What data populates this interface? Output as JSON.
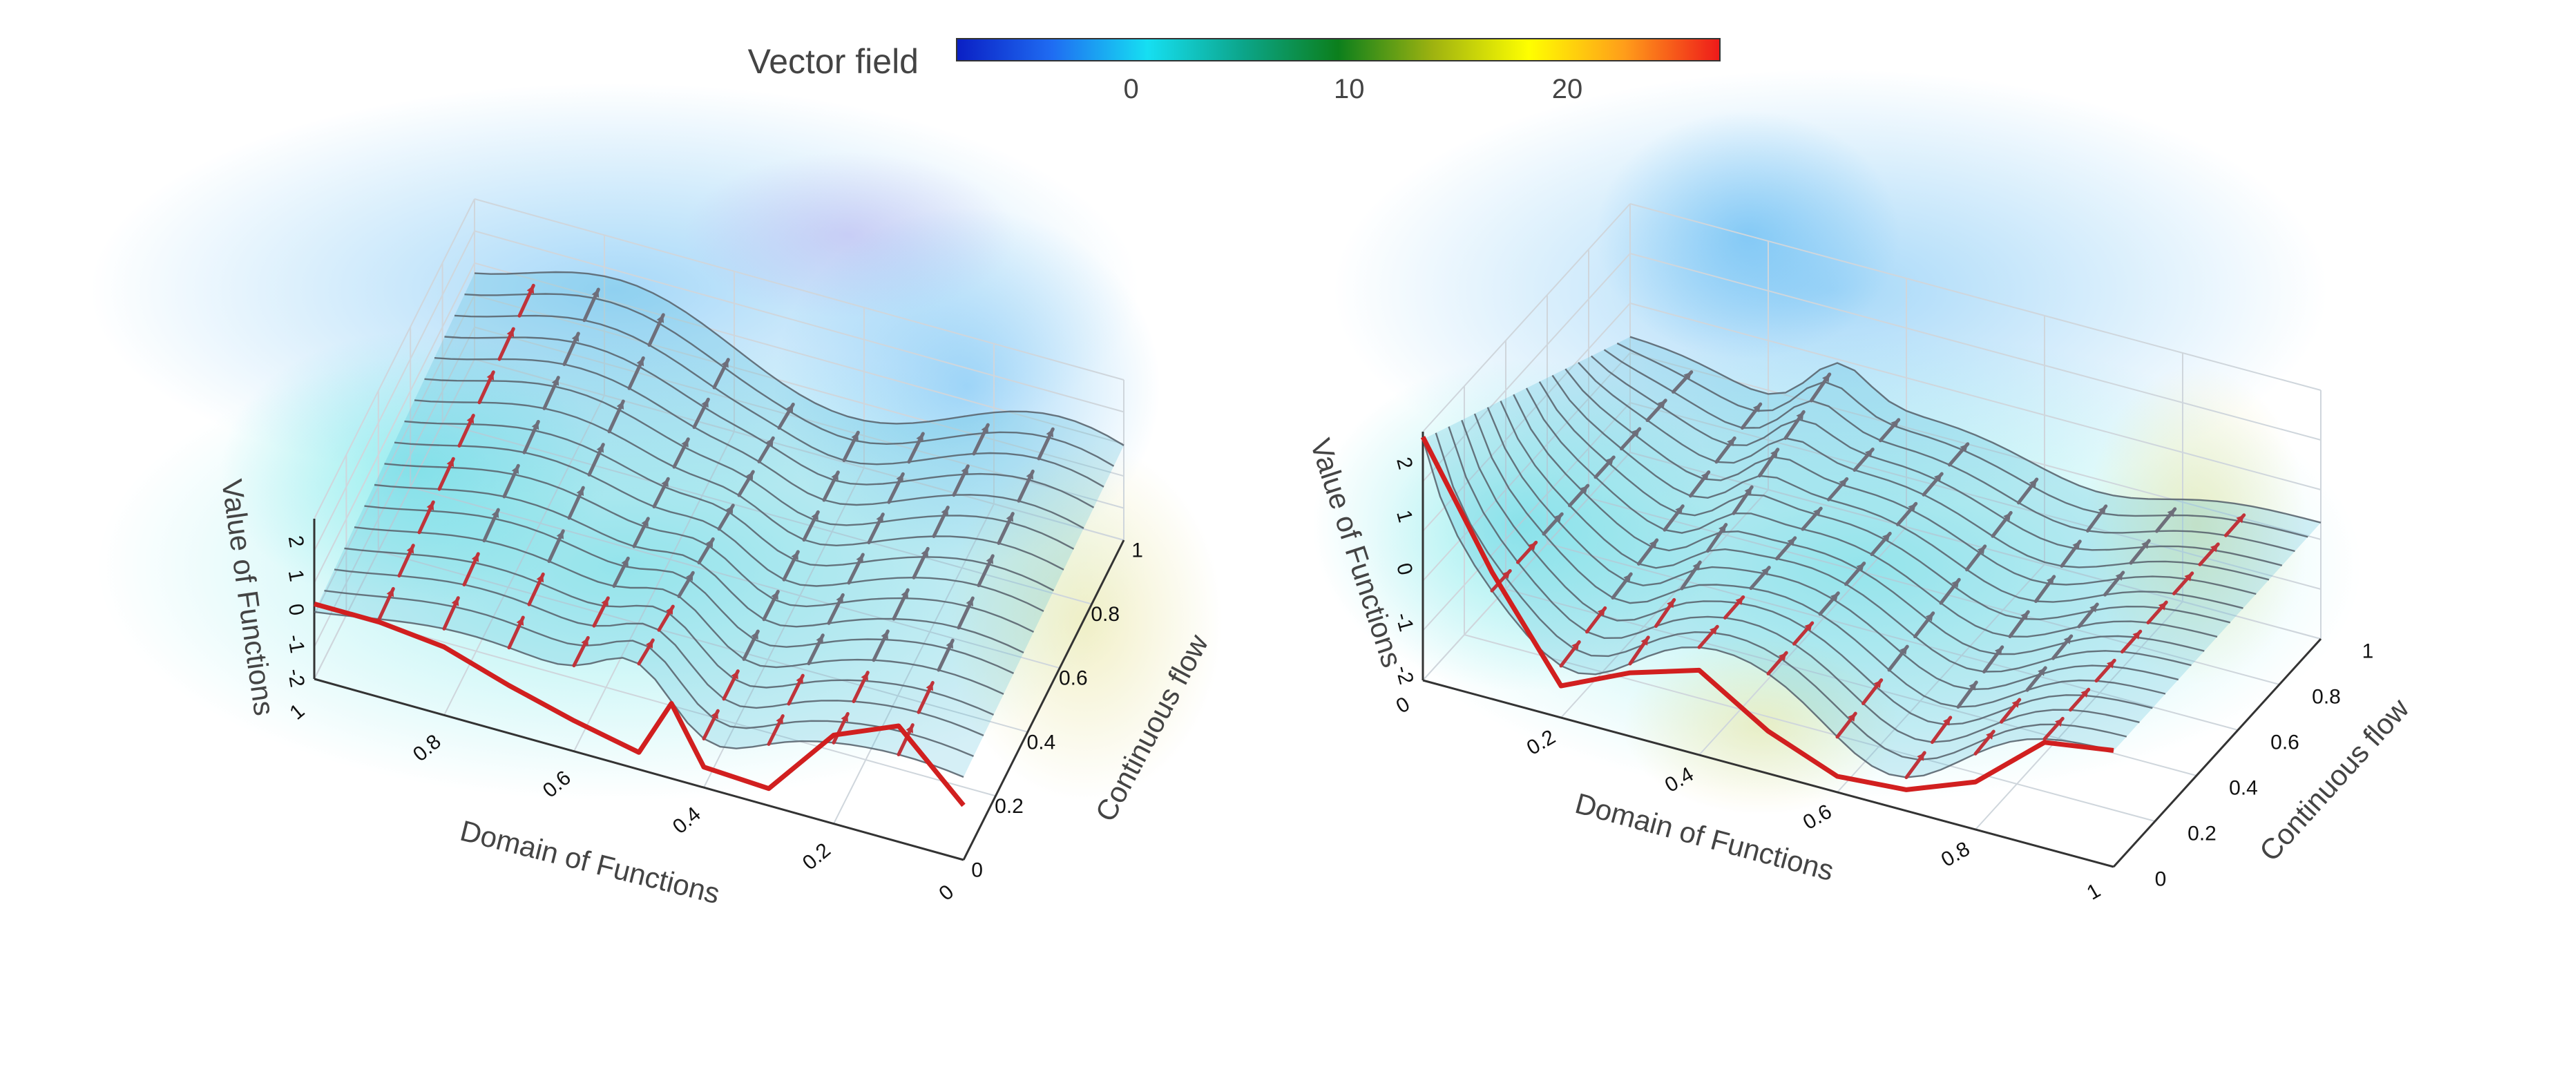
{
  "colorbar": {
    "title": "Vector field",
    "ticks": [
      {
        "value": 0,
        "label": "0"
      },
      {
        "value": 10,
        "label": "10"
      },
      {
        "value": 20,
        "label": "20"
      }
    ],
    "range": [
      -8,
      27
    ],
    "colorscale": [
      "#0a1fc4",
      "#1f6cf2",
      "#16dff2",
      "#0ca58a",
      "#0c7f1c",
      "#9fb310",
      "#ffff00",
      "#ff9d1a",
      "#ee1a1a"
    ]
  },
  "colors": {
    "surface": "#3fb5d8",
    "curve_line": "#5b6670",
    "boundary_curve": "#d11f1f",
    "arrow_red": "#c0333a",
    "arrow_gray": "#6e6e7a",
    "grid": "#cfd6dc",
    "axis": "#333333"
  },
  "chart_data": [
    {
      "type": "surface3d",
      "xlabel": "Domain of Functions",
      "ylabel": "Continuous flow",
      "zlabel": "Value of Functions",
      "x_ticks": [
        "0",
        "0.2",
        "0.4",
        "0.6",
        "0.8",
        "1"
      ],
      "y_ticks": [
        "0",
        "0.2",
        "0.4",
        "0.6",
        "0.8",
        "1"
      ],
      "z_ticks": [
        "-2",
        "-1",
        "0",
        "1",
        "2"
      ],
      "xlim": [
        0,
        1
      ],
      "ylim": [
        0,
        1
      ],
      "zlim": [
        -2.2,
        2.5
      ],
      "boundary_curve": {
        "x": [
          0,
          0.1,
          0.2,
          0.3,
          0.4,
          0.45,
          0.5,
          0.6,
          0.7,
          0.8,
          0.9,
          1.0
        ],
        "z": [
          -0.6,
          1.2,
          0.4,
          -1.7,
          -1.6,
          0.0,
          -1.7,
          -1.3,
          -0.8,
          -0.2,
          0.0,
          0.0
        ]
      }
    },
    {
      "type": "surface3d",
      "xlabel": "Domain of Functions",
      "ylabel": "Continuous flow",
      "zlabel": "Value of Functions",
      "x_ticks": [
        "0",
        "0.2",
        "0.4",
        "0.6",
        "0.8",
        "1"
      ],
      "y_ticks": [
        "0",
        "0.2",
        "0.4",
        "0.6",
        "0.8",
        "1"
      ],
      "z_ticks": [
        "-2",
        "-1",
        "0",
        "1",
        "2"
      ],
      "xlim": [
        0,
        1
      ],
      "ylim": [
        0,
        1
      ],
      "zlim": [
        -2.2,
        2.5
      ],
      "boundary_curve": {
        "x": [
          0,
          0.1,
          0.2,
          0.3,
          0.4,
          0.5,
          0.6,
          0.7,
          0.8,
          0.9,
          1.0
        ],
        "z": [
          2.4,
          0.2,
          -1.6,
          -1.0,
          -0.6,
          -1.4,
          -1.9,
          -1.8,
          -1.3,
          -0.2,
          0.0
        ]
      }
    }
  ]
}
